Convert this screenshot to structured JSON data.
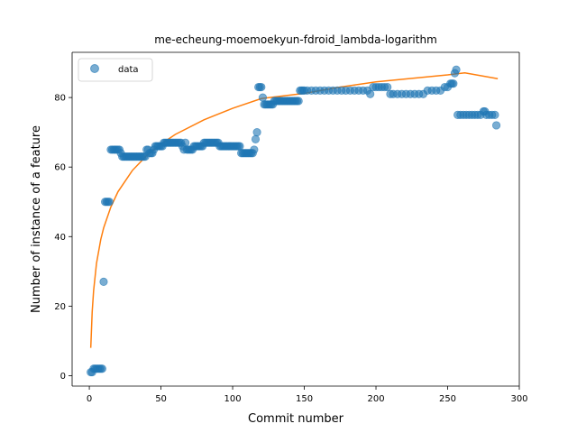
{
  "chart_data": {
    "type": "scatter",
    "title": "me-echeung-moemoekyun-fdroid_lambda-logarithm",
    "xlabel": "Commit number",
    "ylabel": "Number of instance of a feature",
    "xlim": [
      -12,
      300
    ],
    "ylim": [
      -3,
      93
    ],
    "x_ticks": [
      0,
      50,
      100,
      150,
      200,
      250,
      300
    ],
    "y_ticks": [
      0,
      20,
      40,
      60,
      80
    ],
    "grid": false,
    "legend": {
      "position": "top-left",
      "entries": [
        {
          "label": "data",
          "color": "#1f77b4",
          "marker": "circle"
        }
      ]
    },
    "series": [
      {
        "name": "data",
        "kind": "scatter",
        "color": "#1f77b4",
        "points": [
          [
            1,
            1
          ],
          [
            2,
            1
          ],
          [
            3,
            2
          ],
          [
            4,
            2
          ],
          [
            5,
            2
          ],
          [
            6,
            2
          ],
          [
            7,
            2
          ],
          [
            8,
            2
          ],
          [
            9,
            2
          ],
          [
            10,
            27
          ],
          [
            11,
            50
          ],
          [
            12,
            50
          ],
          [
            13,
            50
          ],
          [
            14,
            50
          ],
          [
            15,
            65
          ],
          [
            16,
            65
          ],
          [
            17,
            65
          ],
          [
            18,
            65
          ],
          [
            19,
            65
          ],
          [
            20,
            65
          ],
          [
            21,
            65
          ],
          [
            22,
            64
          ],
          [
            23,
            63
          ],
          [
            24,
            63
          ],
          [
            25,
            63
          ],
          [
            26,
            63
          ],
          [
            27,
            63
          ],
          [
            28,
            63
          ],
          [
            29,
            63
          ],
          [
            30,
            63
          ],
          [
            31,
            63
          ],
          [
            32,
            63
          ],
          [
            33,
            63
          ],
          [
            34,
            63
          ],
          [
            35,
            63
          ],
          [
            36,
            63
          ],
          [
            37,
            63
          ],
          [
            38,
            63
          ],
          [
            39,
            63
          ],
          [
            40,
            65
          ],
          [
            41,
            65
          ],
          [
            42,
            64
          ],
          [
            43,
            64
          ],
          [
            44,
            64
          ],
          [
            45,
            65
          ],
          [
            46,
            66
          ],
          [
            47,
            66
          ],
          [
            48,
            66
          ],
          [
            49,
            66
          ],
          [
            50,
            66
          ],
          [
            51,
            66
          ],
          [
            52,
            67
          ],
          [
            53,
            67
          ],
          [
            54,
            67
          ],
          [
            55,
            67
          ],
          [
            56,
            67
          ],
          [
            57,
            67
          ],
          [
            58,
            67
          ],
          [
            59,
            67
          ],
          [
            60,
            67
          ],
          [
            61,
            67
          ],
          [
            62,
            67
          ],
          [
            63,
            67
          ],
          [
            64,
            67
          ],
          [
            65,
            66
          ],
          [
            66,
            65
          ],
          [
            67,
            67
          ],
          [
            68,
            65
          ],
          [
            69,
            65
          ],
          [
            70,
            65
          ],
          [
            71,
            65
          ],
          [
            72,
            65
          ],
          [
            73,
            66
          ],
          [
            74,
            66
          ],
          [
            75,
            66
          ],
          [
            76,
            66
          ],
          [
            77,
            66
          ],
          [
            78,
            66
          ],
          [
            79,
            66
          ],
          [
            80,
            67
          ],
          [
            81,
            67
          ],
          [
            82,
            67
          ],
          [
            83,
            67
          ],
          [
            84,
            67
          ],
          [
            85,
            67
          ],
          [
            86,
            67
          ],
          [
            87,
            67
          ],
          [
            88,
            67
          ],
          [
            89,
            67
          ],
          [
            90,
            67
          ],
          [
            91,
            66
          ],
          [
            92,
            66
          ],
          [
            93,
            66
          ],
          [
            94,
            66
          ],
          [
            95,
            66
          ],
          [
            96,
            66
          ],
          [
            97,
            66
          ],
          [
            98,
            66
          ],
          [
            99,
            66
          ],
          [
            100,
            66
          ],
          [
            101,
            66
          ],
          [
            102,
            66
          ],
          [
            103,
            66
          ],
          [
            104,
            66
          ],
          [
            105,
            66
          ],
          [
            106,
            64
          ],
          [
            107,
            64
          ],
          [
            108,
            64
          ],
          [
            109,
            64
          ],
          [
            110,
            64
          ],
          [
            111,
            64
          ],
          [
            112,
            64
          ],
          [
            113,
            64
          ],
          [
            114,
            64
          ],
          [
            115,
            65
          ],
          [
            116,
            68
          ],
          [
            117,
            70
          ],
          [
            118,
            83
          ],
          [
            119,
            83
          ],
          [
            120,
            83
          ],
          [
            121,
            80
          ],
          [
            122,
            78
          ],
          [
            123,
            78
          ],
          [
            124,
            78
          ],
          [
            125,
            78
          ],
          [
            126,
            78
          ],
          [
            127,
            78
          ],
          [
            128,
            78
          ],
          [
            129,
            79
          ],
          [
            130,
            79
          ],
          [
            131,
            79
          ],
          [
            132,
            79
          ],
          [
            133,
            79
          ],
          [
            134,
            79
          ],
          [
            135,
            79
          ],
          [
            136,
            79
          ],
          [
            137,
            79
          ],
          [
            138,
            79
          ],
          [
            139,
            79
          ],
          [
            140,
            79
          ],
          [
            141,
            79
          ],
          [
            142,
            79
          ],
          [
            143,
            79
          ],
          [
            144,
            79
          ],
          [
            145,
            79
          ],
          [
            146,
            79
          ],
          [
            147,
            82
          ],
          [
            148,
            82
          ],
          [
            149,
            82
          ],
          [
            150,
            82
          ],
          [
            152,
            82
          ],
          [
            155,
            82
          ],
          [
            158,
            82
          ],
          [
            161,
            82
          ],
          [
            164,
            82
          ],
          [
            167,
            82
          ],
          [
            170,
            82
          ],
          [
            173,
            82
          ],
          [
            176,
            82
          ],
          [
            179,
            82
          ],
          [
            182,
            82
          ],
          [
            185,
            82
          ],
          [
            188,
            82
          ],
          [
            191,
            82
          ],
          [
            194,
            82
          ],
          [
            196,
            81
          ],
          [
            198,
            83
          ],
          [
            200,
            83
          ],
          [
            202,
            83
          ],
          [
            204,
            83
          ],
          [
            206,
            83
          ],
          [
            208,
            83
          ],
          [
            210,
            81
          ],
          [
            212,
            81
          ],
          [
            215,
            81
          ],
          [
            218,
            81
          ],
          [
            221,
            81
          ],
          [
            224,
            81
          ],
          [
            227,
            81
          ],
          [
            230,
            81
          ],
          [
            233,
            81
          ],
          [
            236,
            82
          ],
          [
            239,
            82
          ],
          [
            242,
            82
          ],
          [
            245,
            82
          ],
          [
            248,
            83
          ],
          [
            250,
            83
          ],
          [
            252,
            84
          ],
          [
            253,
            84
          ],
          [
            254,
            84
          ],
          [
            255,
            87
          ],
          [
            256,
            88
          ],
          [
            257,
            75
          ],
          [
            259,
            75
          ],
          [
            261,
            75
          ],
          [
            263,
            75
          ],
          [
            265,
            75
          ],
          [
            267,
            75
          ],
          [
            269,
            75
          ],
          [
            271,
            75
          ],
          [
            273,
            75
          ],
          [
            275,
            76
          ],
          [
            276,
            76
          ],
          [
            277,
            75
          ],
          [
            279,
            75
          ],
          [
            281,
            75
          ],
          [
            283,
            75
          ],
          [
            284,
            72
          ]
        ]
      },
      {
        "name": "",
        "kind": "line",
        "color": "#ff7f0e",
        "points": [
          [
            1,
            8
          ],
          [
            2,
            18.4
          ],
          [
            3,
            24.5
          ],
          [
            5,
            32.3
          ],
          [
            8,
            39.2
          ],
          [
            10,
            42.5
          ],
          [
            15,
            48.5
          ],
          [
            20,
            52.9
          ],
          [
            30,
            59
          ],
          [
            40,
            63.3
          ],
          [
            50,
            66.6
          ],
          [
            60,
            69.4
          ],
          [
            80,
            73.6
          ],
          [
            100,
            76.9
          ],
          [
            120,
            79.7
          ],
          [
            150,
            81.2
          ],
          [
            175,
            83
          ],
          [
            200,
            84.5
          ],
          [
            225,
            85.5
          ],
          [
            250,
            86.5
          ],
          [
            262,
            87.1
          ],
          [
            285,
            85.4
          ]
        ]
      }
    ]
  }
}
